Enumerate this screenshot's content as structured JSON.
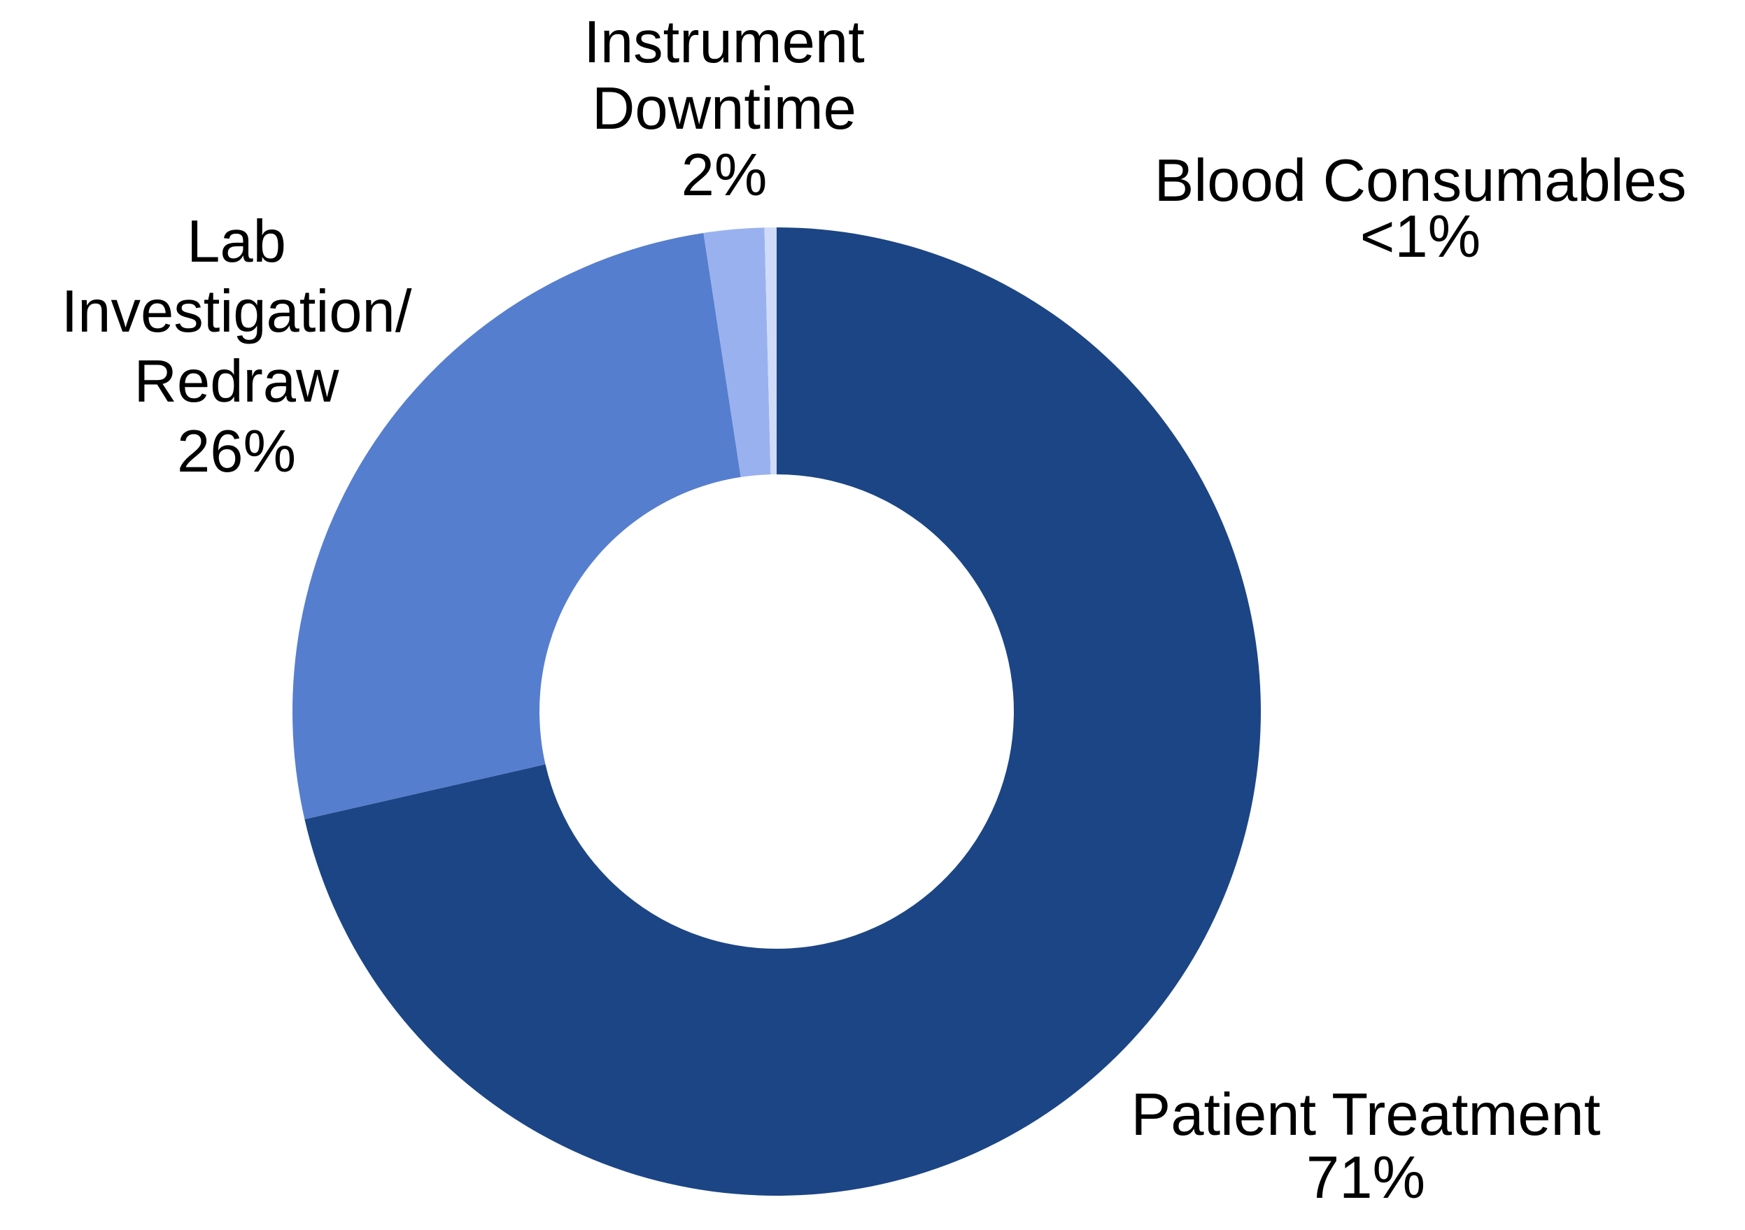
{
  "chart_data": {
    "type": "pie",
    "subtype": "donut",
    "title": "",
    "legend": "none",
    "background_color": "#FFFFFF",
    "label_text_color": "#000000",
    "hole_ratio": 0.49,
    "start_angle_deg": 0,
    "direction": "clockwise",
    "slices": [
      {
        "label": "Patient Treatment",
        "display_value": "71%",
        "value": 71,
        "color": "#1C4585"
      },
      {
        "label": "Lab Investigation/Redraw",
        "display_value": "26%",
        "value": 26,
        "color": "#567ECE"
      },
      {
        "label": "Instrument Downtime",
        "display_value": "2%",
        "value": 2,
        "color": "#9AB1EF"
      },
      {
        "label": "Blood Consumables",
        "display_value": "<1%",
        "value": 0.4,
        "color": "#D0DBF8"
      }
    ],
    "callouts": [
      {
        "id": "instrument-downtime",
        "lines": [
          "Instrument",
          "Downtime",
          "2%"
        ]
      },
      {
        "id": "blood-consumables",
        "lines": [
          "Blood Consumables",
          "<1%"
        ]
      },
      {
        "id": "lab-investigation-redraw",
        "lines": [
          "Lab",
          "Investigation/",
          "Redraw",
          "26%"
        ]
      },
      {
        "id": "patient-treatment",
        "lines": [
          "Patient Treatment",
          "71%"
        ]
      }
    ]
  }
}
